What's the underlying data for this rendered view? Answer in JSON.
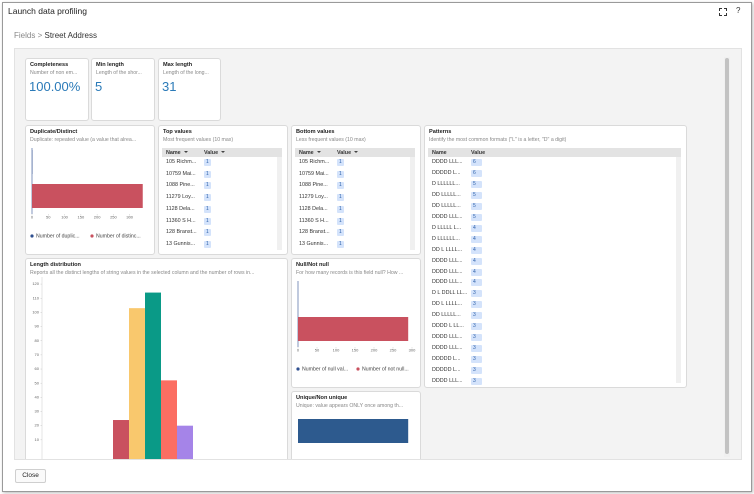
{
  "dialog": {
    "title": "Launch data profiling",
    "help": "?"
  },
  "breadcrumb": {
    "parent": "Fields",
    "separator": ">",
    "current": "Street Address"
  },
  "metrics": [
    {
      "title": "Completeness",
      "description": "Number of non em...",
      "value": "100.00%"
    },
    {
      "title": "Min length",
      "description": "Length of the shor...",
      "value": 5
    },
    {
      "title": "Max length",
      "description": "Length of the long...",
      "value": 31
    }
  ],
  "duplicate_distinct": {
    "title": "Duplicate/Distinct",
    "description": "Duplicate: repeated value (a value that alrea...",
    "chart": {
      "type": "bar",
      "orientation": "horizontal",
      "series": [
        {
          "name": "Number of duplic...",
          "color": "#2f4f8f",
          "values": [
            1
          ]
        },
        {
          "name": "Number of distinc...",
          "color": "#c9515f",
          "values": [
            340
          ]
        }
      ],
      "xlim": [
        0,
        350
      ],
      "xticks": [
        0,
        50,
        100,
        150,
        200,
        250,
        300
      ]
    }
  },
  "top_values": {
    "title": "Top values",
    "description": "Most frequent values (10 max)",
    "columns": [
      "Name",
      "Value"
    ],
    "rows": [
      [
        "105 Richm...",
        1
      ],
      [
        "10759 Mai...",
        1
      ],
      [
        "1088 Pine...",
        1
      ],
      [
        "11279 Loy...",
        1
      ],
      [
        "1128 Dela...",
        1
      ],
      [
        "11360 S H...",
        1
      ],
      [
        "128 Branst...",
        1
      ],
      [
        "13 Gunnis...",
        1
      ]
    ]
  },
  "bottom_values": {
    "title": "Bottom values",
    "description": "Less frequent values (10 max)",
    "columns": [
      "Name",
      "Value"
    ],
    "rows": [
      [
        "105 Richm...",
        1
      ],
      [
        "10759 Mai...",
        1
      ],
      [
        "1088 Pine...",
        1
      ],
      [
        "11279 Loy...",
        1
      ],
      [
        "1128 Dela...",
        1
      ],
      [
        "11360 S H...",
        1
      ],
      [
        "128 Branst...",
        1
      ],
      [
        "13 Gunnis...",
        1
      ]
    ]
  },
  "patterns": {
    "title": "Patterns",
    "description": "Identify the most common formats (\"L\" is a letter, \"D\" a digit)",
    "columns": [
      "Name",
      "Value"
    ],
    "rows": [
      [
        "DDDD LLL...",
        6
      ],
      [
        "DDDDD L...",
        6
      ],
      [
        "D LLLLLL...",
        5
      ],
      [
        "DD LLLLL...",
        5
      ],
      [
        "DD LLLLL...",
        5
      ],
      [
        "DDDD LLL...",
        5
      ],
      [
        "D LLLLL L...",
        4
      ],
      [
        "D LLLLLL...",
        4
      ],
      [
        "DD L LLLL...",
        4
      ],
      [
        "DDDD LLL...",
        4
      ],
      [
        "DDDD LLL...",
        4
      ],
      [
        "DDDD LLL...",
        4
      ],
      [
        "D L DDLL LL...",
        3
      ],
      [
        "DD L LLLL...",
        3
      ],
      [
        "DD LLLLL...",
        3
      ],
      [
        "DDDD L LL...",
        3
      ],
      [
        "DDDD LLL...",
        3
      ],
      [
        "DDDD LLL...",
        3
      ],
      [
        "DDDDD L...",
        3
      ],
      [
        "DDDDD L...",
        3
      ],
      [
        "DDDD LLL...",
        3
      ]
    ]
  },
  "length_distribution": {
    "title": "Length distribution",
    "description": "Reports all the distinct lengths of string values in the selected column and the number of rows in...",
    "chart": {
      "type": "bar",
      "values": [
        24,
        103,
        114,
        52,
        20
      ],
      "colors": [
        "#c9515f",
        "#f9c86d",
        "#0a9a87",
        "#fb6e62",
        "#a584e8"
      ],
      "ylim": [
        0,
        125
      ],
      "yticks": [
        10,
        20,
        30,
        40,
        50,
        60,
        70,
        80,
        90,
        100,
        110,
        120
      ]
    }
  },
  "null_not_null": {
    "title": "Null/Not null",
    "description": "For how many records is this field null? How ...",
    "chart": {
      "type": "bar",
      "orientation": "horizontal",
      "series": [
        {
          "name": "Number of null val...",
          "color": "#2f4f8f",
          "values": [
            0
          ]
        },
        {
          "name": "Number of not null...",
          "color": "#c9515f",
          "values": [
            290
          ]
        }
      ],
      "xlim": [
        0,
        300
      ],
      "xticks": [
        0,
        50,
        100,
        150,
        200,
        250,
        300
      ]
    }
  },
  "unique_non_unique": {
    "title": "Unique/Non unique",
    "description": "Unique: value appears ONLY once among th...",
    "chart": {
      "type": "bar",
      "orientation": "horizontal",
      "values": [
        290
      ],
      "color": "#2d5a8e",
      "xlim": [
        0,
        300
      ]
    }
  },
  "footer": {
    "close": "Close"
  }
}
